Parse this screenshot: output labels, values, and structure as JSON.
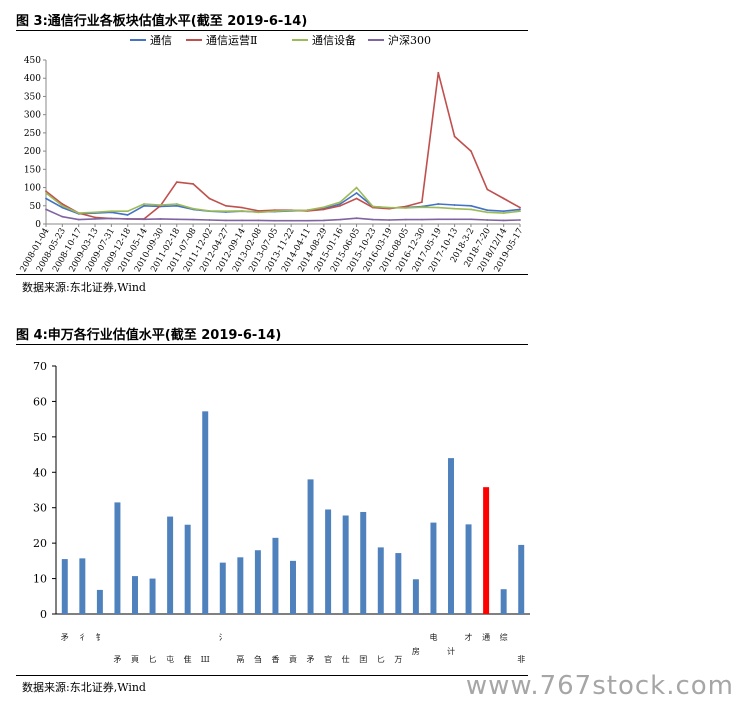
{
  "figure3": {
    "title": "图 3:通信行业各板块估值水平(截至 2019-6-14)",
    "source": "数据来源:东北证券,Wind",
    "chart_data": {
      "type": "line",
      "x_dates": [
        "2008-01-04",
        "2008-05-23",
        "2008-10-17",
        "2009-03-13",
        "2009-07-31",
        "2009-12-18",
        "2010-05-14",
        "2010-09-30",
        "2011-02-18",
        "2011-07-08",
        "2011-12-02",
        "2012-04-27",
        "2012-09-14",
        "2013-02-08",
        "2013-07-05",
        "2013-11-22",
        "2014-04-11",
        "2014-08-29",
        "2015-01-16",
        "2015-06-05",
        "2015-10-23",
        "2016-03-19",
        "2016-08-05",
        "2016-12-30",
        "2017-05-19",
        "2017-10-13",
        "2018-3-2",
        "2018-7-20",
        "2018/12/14",
        "2019-05-17"
      ],
      "ylim": [
        0,
        450
      ],
      "yticks": [
        0,
        50,
        100,
        150,
        200,
        250,
        300,
        350,
        400,
        450
      ],
      "legend_position": "top",
      "series": [
        {
          "name": "通信",
          "color": "#4472c4",
          "values": [
            70,
            45,
            28,
            30,
            32,
            25,
            50,
            48,
            50,
            40,
            35,
            33,
            35,
            33,
            34,
            36,
            38,
            42,
            55,
            85,
            48,
            44,
            45,
            48,
            55,
            52,
            50,
            38,
            35,
            40
          ]
        },
        {
          "name": "通信运营Ⅱ",
          "color": "#c0504d",
          "values": [
            90,
            55,
            30,
            18,
            15,
            14,
            14,
            50,
            115,
            110,
            70,
            50,
            45,
            36,
            38,
            38,
            36,
            40,
            50,
            70,
            45,
            42,
            48,
            60,
            415,
            240,
            200,
            95,
            70,
            45
          ]
        },
        {
          "name": "通信设备",
          "color": "#9bbb59",
          "values": [
            85,
            50,
            30,
            32,
            35,
            35,
            55,
            52,
            55,
            42,
            36,
            35,
            36,
            32,
            35,
            37,
            38,
            46,
            60,
            100,
            48,
            45,
            44,
            46,
            45,
            42,
            40,
            32,
            30,
            35
          ]
        },
        {
          "name": "沪深300",
          "color": "#8064a2",
          "values": [
            40,
            20,
            12,
            14,
            15,
            14,
            13,
            14,
            13,
            12,
            11,
            10,
            10,
            10,
            9,
            9,
            9,
            10,
            12,
            16,
            12,
            11,
            12,
            12,
            13,
            13,
            13,
            11,
            10,
            11
          ]
        }
      ]
    }
  },
  "figure4": {
    "title": "图 4:申万各行业估值水平(截至 2019-6-14)",
    "source": "数据来源:东北证券,Wind",
    "chart_data": {
      "type": "bar",
      "ylim": [
        0,
        70
      ],
      "yticks": [
        0,
        10,
        20,
        30,
        40,
        50,
        60,
        70
      ],
      "values": [
        15.5,
        15.7,
        6.8,
        31.5,
        10.7,
        10,
        27.5,
        25.2,
        57.2,
        14.5,
        16,
        18,
        21.5,
        15,
        38,
        29.5,
        27.8,
        28.8,
        18.8,
        17.2,
        9.8,
        25.8,
        44,
        25.3,
        35.8,
        7,
        19.5
      ],
      "highlight_index": 24,
      "bar_color": "#4f81bd",
      "highlight_color": "#ff0000",
      "category_glyphs": [
        {
          "index": 0,
          "text": "矛",
          "row": 1
        },
        {
          "index": 1,
          "text": "彳",
          "row": 1
        },
        {
          "index": 2,
          "text": "钅",
          "row": 1
        },
        {
          "index": 3,
          "text": "矛",
          "row": 2
        },
        {
          "index": 4,
          "text": "頁",
          "row": 2
        },
        {
          "index": 5,
          "text": "匕",
          "row": 2
        },
        {
          "index": 6,
          "text": "屯",
          "row": 2
        },
        {
          "index": 7,
          "text": "隹",
          "row": 2
        },
        {
          "index": 8,
          "text": "Ш",
          "row": 2
        },
        {
          "index": 9,
          "text": "氵",
          "row": 1
        },
        {
          "index": 10,
          "text": "鬲",
          "row": 2
        },
        {
          "index": 11,
          "text": "刍",
          "row": 2
        },
        {
          "index": 12,
          "text": "香",
          "row": 2
        },
        {
          "index": 13,
          "text": "貢",
          "row": 2
        },
        {
          "index": 14,
          "text": "矛",
          "row": 2
        },
        {
          "index": 15,
          "text": "官",
          "row": 2
        },
        {
          "index": 16,
          "text": "仕",
          "row": 2
        },
        {
          "index": 17,
          "text": "囯",
          "row": 2
        },
        {
          "index": 18,
          "text": "匕",
          "row": 2
        },
        {
          "index": 19,
          "text": "万",
          "row": 2
        },
        {
          "index": 20,
          "text": "房",
          "row": 3
        },
        {
          "index": 21,
          "text": "电",
          "row": 1
        },
        {
          "index": 22,
          "text": "计",
          "row": 3
        },
        {
          "index": 23,
          "text": "才",
          "row": 1
        },
        {
          "index": 24,
          "text": "通",
          "row": 1
        },
        {
          "index": 25,
          "text": "综",
          "row": 1
        },
        {
          "index": 26,
          "text": "非",
          "row": 2
        }
      ]
    }
  },
  "watermark": "www.767stock.com"
}
